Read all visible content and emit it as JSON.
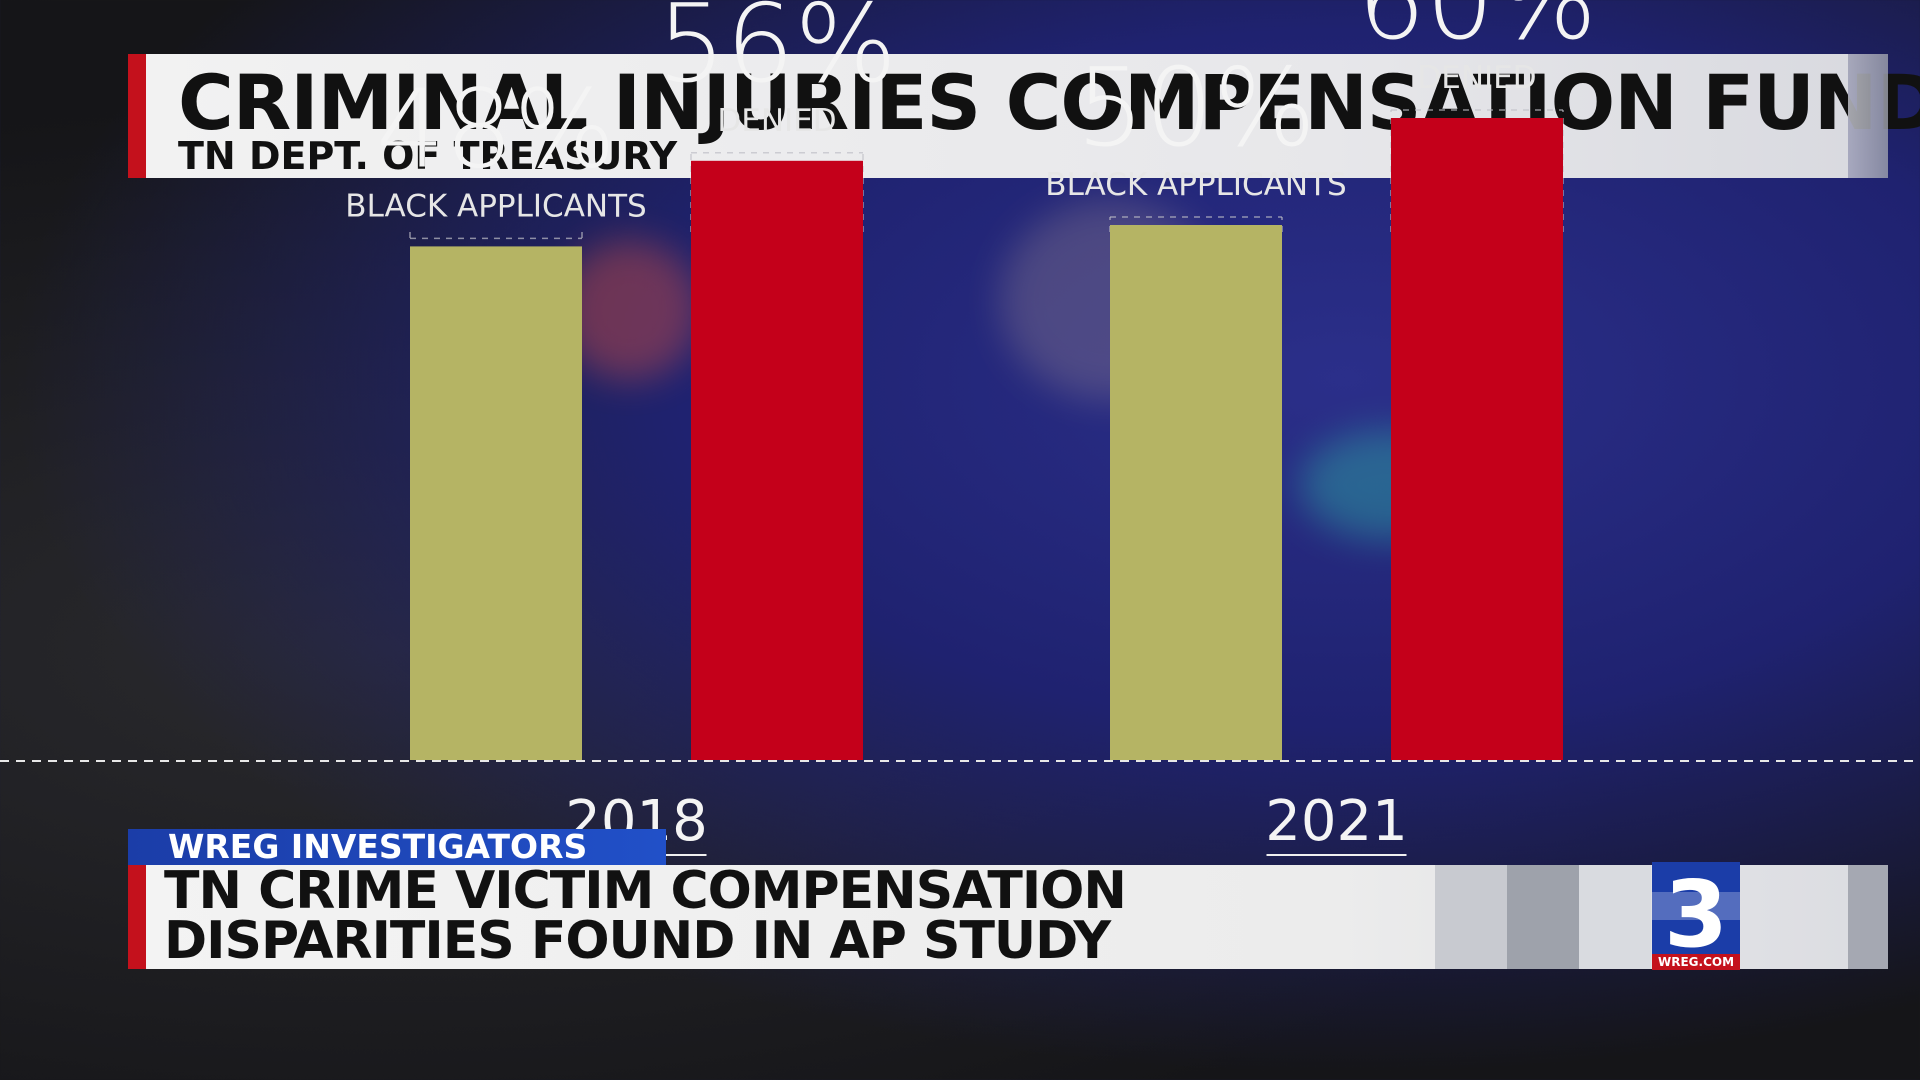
{
  "header": {
    "title": "CRIMINAL INJURIES COMPENSATION FUND",
    "subtitle": "TN DEPT. OF TREASURY"
  },
  "chart_data": {
    "type": "bar",
    "categories": [
      "2018",
      "2021"
    ],
    "series": [
      {
        "name": "BLACK APPLICANTS",
        "values": [
          48,
          50
        ],
        "color": "#b5b464"
      },
      {
        "name": "DENIED",
        "values": [
          56,
          60
        ],
        "color": "#c4001a"
      }
    ],
    "value_labels": [
      [
        "48%",
        "50%"
      ],
      [
        "56%",
        "60%"
      ]
    ],
    "unit": "%",
    "title": "",
    "xlabel": "",
    "ylabel": "",
    "grid": false,
    "legend": "none"
  },
  "lower_third": {
    "tag": "WREG INVESTIGATORS",
    "headline_line1": "TN CRIME VICTIM COMPENSATION",
    "headline_line2": "DISPARITIES FOUND IN AP STUDY"
  },
  "logo": {
    "numeral": "3",
    "url": "WREG.COM"
  },
  "colors": {
    "accent_red": "#c4111c",
    "tag_blue": "#1b3da8"
  }
}
